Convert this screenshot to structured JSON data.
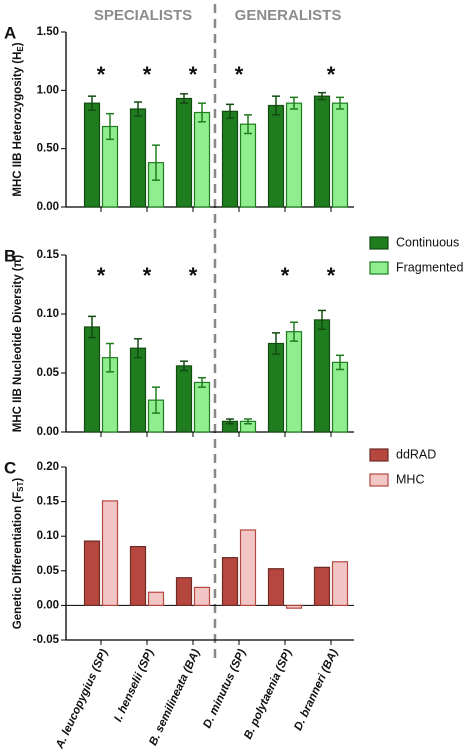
{
  "group_labels": [
    "SPECIALISTS",
    "GENERALISTS"
  ],
  "categories": [
    "A. leucopygius (SP)",
    "I. henselii (SP)",
    "B. semilineata (BA)",
    "D. minutus (SP)",
    "B. polytaenia (SP)",
    "D. branneri (BA)"
  ],
  "chart_data": [
    {
      "type": "bar",
      "panel_label": "A",
      "y_label": {
        "text": "MHC IIB Heterozygosity (H",
        "sub": "E",
        "end": ")"
      },
      "ylim": [
        0,
        1.5
      ],
      "yticks": [
        {
          "value": 0,
          "label": "0.00"
        },
        {
          "value": 0.5,
          "label": "0.50"
        },
        {
          "value": 1,
          "label": "1.00"
        },
        {
          "value": 1.5,
          "label": "1.50"
        }
      ],
      "markers": [
        "*",
        "*",
        "*",
        "*",
        null,
        "*"
      ],
      "series": [
        {
          "name": "Continuous",
          "color": "#1f7d1f",
          "values": [
            0.89,
            0.84,
            0.93,
            0.82,
            0.87,
            0.95
          ],
          "errors": [
            0.06,
            0.06,
            0.04,
            0.06,
            0.08,
            0.03
          ]
        },
        {
          "name": "Fragmented",
          "color": "#90ee90",
          "values": [
            0.69,
            0.38,
            0.81,
            0.71,
            0.89,
            0.89
          ],
          "errors": [
            0.11,
            0.15,
            0.08,
            0.08,
            0.05,
            0.05
          ]
        }
      ]
    },
    {
      "type": "bar",
      "panel_label": "B",
      "y_label": {
        "text": "MHC IIB Nucleotide Diversity (π)"
      },
      "ylim": [
        0,
        0.15
      ],
      "yticks": [
        {
          "value": 0,
          "label": "0.00"
        },
        0.05,
        {
          "value": 0.1,
          "label": "0.10"
        },
        0.15
      ],
      "markers": [
        "*",
        "*",
        "*",
        null,
        "*",
        "*"
      ],
      "legend": true,
      "series": [
        {
          "name": "Continuous",
          "color": "#1f7d1f",
          "values": [
            0.089,
            0.071,
            0.056,
            0.009,
            0.075,
            0.095
          ],
          "errors": [
            0.009,
            0.008,
            0.004,
            0.002,
            0.009,
            0.008
          ]
        },
        {
          "name": "Fragmented",
          "color": "#90ee90",
          "values": [
            0.063,
            0.027,
            0.042,
            0.009,
            0.085,
            0.059
          ],
          "errors": [
            0.012,
            0.011,
            0.004,
            0.002,
            0.008,
            0.006
          ]
        }
      ]
    },
    {
      "type": "bar",
      "panel_label": "C",
      "y_label": {
        "text": "Genetic Differentiation (F",
        "sub": "ST",
        "end": ")"
      },
      "ylim": [
        -0.05,
        0.2
      ],
      "yticks": [
        -0.05,
        {
          "value": 0,
          "label": "0.00"
        },
        0.05,
        {
          "value": 0.1,
          "label": "0.10"
        },
        0.15,
        {
          "value": 0.2,
          "label": "0.20"
        }
      ],
      "legend": true,
      "series": [
        {
          "name": "ddRAD",
          "color": "#b5473f",
          "values": [
            0.093,
            0.085,
            0.04,
            0.069,
            0.053,
            0.055
          ]
        },
        {
          "name": "MHC",
          "color": "#f3c6c6",
          "values": [
            0.151,
            0.019,
            0.026,
            0.109,
            -0.004,
            0.063
          ]
        }
      ]
    }
  ]
}
